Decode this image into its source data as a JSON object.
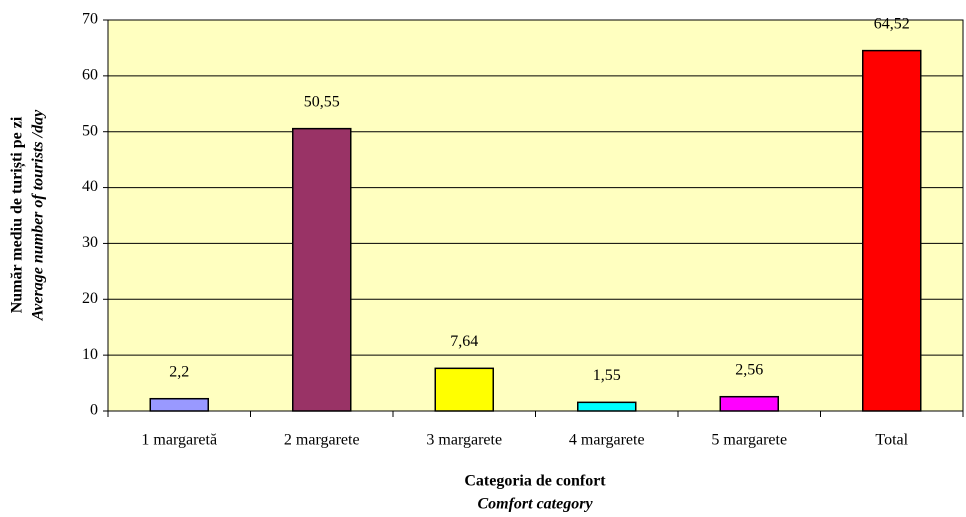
{
  "chart_data": {
    "type": "bar",
    "ylabel": "Număr mediu de turiști pe zi",
    "ylabel_en": "Average number of tourists /day",
    "xlabel": "Categoria de confort",
    "xlabel_en": "Comfort category",
    "categories": [
      "1 margaretă",
      "2 margarete",
      "3 margarete",
      "4 margarete",
      "5 margarete",
      "Total"
    ],
    "values": [
      2.2,
      50.55,
      7.64,
      1.55,
      2.56,
      64.52
    ],
    "value_labels": [
      "2,2",
      "50,55",
      "7,64",
      "1,55",
      "2,56",
      "64,52"
    ],
    "colors": [
      "#9999ff",
      "#993366",
      "#ffff00",
      "#00ffff",
      "#ff00ff",
      "#ff0000"
    ],
    "ylim": [
      0,
      70
    ],
    "yticks": [
      0,
      10,
      20,
      30,
      40,
      50,
      60,
      70
    ],
    "grid": true
  }
}
